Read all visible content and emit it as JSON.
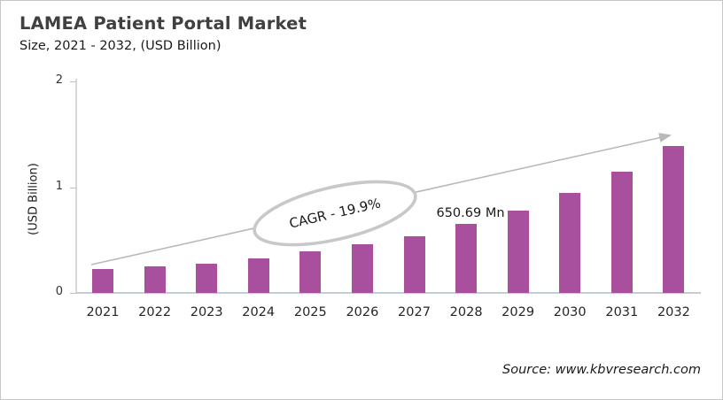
{
  "header": {
    "title": "LAMEA Patient Portal Market",
    "subtitle": "Size, 2021 - 2032, (USD Billion)"
  },
  "chart_data": {
    "type": "bar",
    "title": "LAMEA Patient Portal Market Size, 2021 - 2032, (USD Billion)",
    "categories": [
      "2021",
      "2022",
      "2023",
      "2024",
      "2025",
      "2026",
      "2027",
      "2028",
      "2029",
      "2030",
      "2031",
      "2032"
    ],
    "values": [
      0.23,
      0.25,
      0.28,
      0.33,
      0.39,
      0.46,
      0.54,
      0.65069,
      0.78,
      0.95,
      1.15,
      1.39
    ],
    "unit": "USD Billion",
    "ylabel": "(USD Billion)",
    "ylim": [
      0,
      2
    ],
    "yticks": [
      0,
      1,
      2
    ],
    "grid": false,
    "legend": "none",
    "annotations": {
      "value_label": "650.69 Mn",
      "value_label_category": "2028",
      "cagr_label": "CAGR - 19.9%",
      "trend_arrow": "upward straight arrow from 2021 bar to 2032 bar"
    },
    "colors": {
      "bar": "#A8509E",
      "trend_line": "#B9B9B9",
      "ellipse_stroke": "#C8C8C8",
      "axis": "#C2C2C2",
      "baseline": "#AEBEC6",
      "title_text": "#404040",
      "body_text": "#1A1A1A"
    }
  },
  "footer": {
    "source": "Source: www.kbvresearch.com"
  }
}
